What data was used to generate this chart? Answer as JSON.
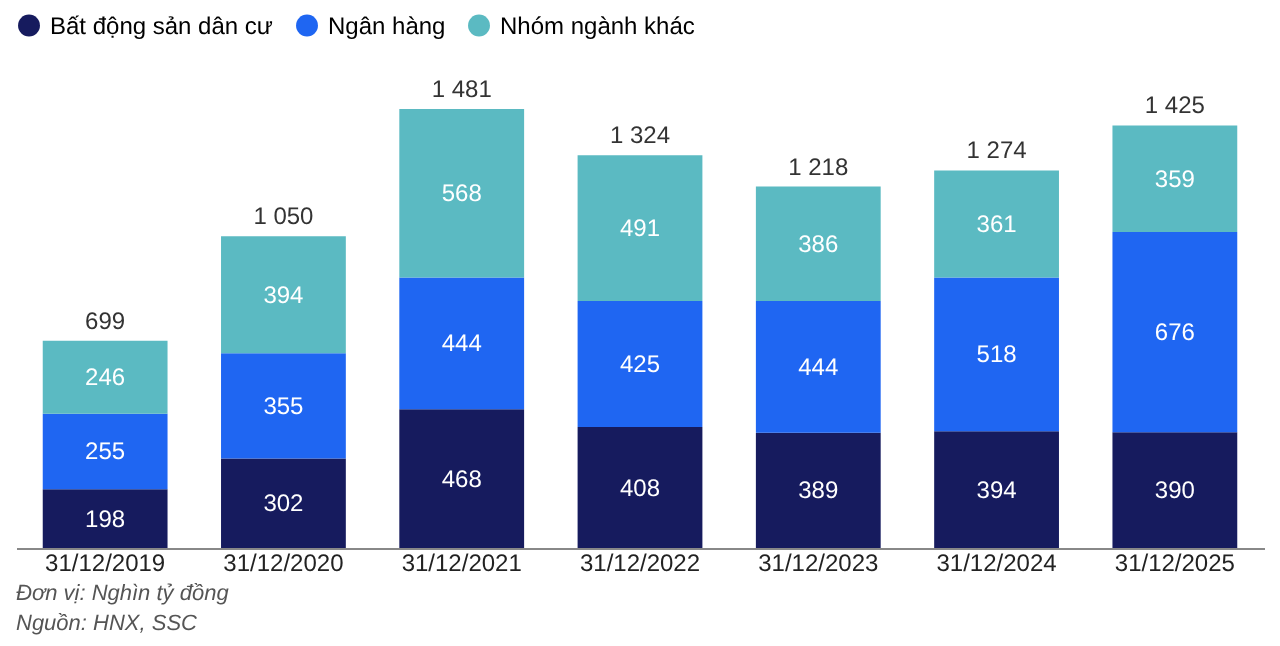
{
  "chart_data": {
    "type": "bar",
    "stacked": true,
    "data_labels": true,
    "legend": "top",
    "tick_labels": "x",
    "grid": false,
    "categories": [
      "31/12/2019",
      "31/12/2020",
      "31/12/2021",
      "31/12/2022",
      "31/12/2023",
      "31/12/2024",
      "31/12/2025"
    ],
    "series": [
      {
        "name": "Bất động sản dân cư",
        "color": "#161b5e",
        "values": [
          198,
          302,
          468,
          408,
          389,
          394,
          390
        ]
      },
      {
        "name": "Ngân hàng",
        "color": "#1f66f2",
        "values": [
          255,
          355,
          444,
          425,
          444,
          518,
          676
        ]
      },
      {
        "name": "Nhóm ngành khác",
        "color": "#5bbac2",
        "values": [
          246,
          394,
          568,
          491,
          386,
          361,
          359
        ]
      }
    ],
    "totals": [
      "699",
      "1 050",
      "1 481",
      "1 324",
      "1 218",
      "1 274",
      "1 425"
    ],
    "annotations": [
      "Đơn vị: Nghìn tỷ đồng",
      "Nguồn: HNX, SSC"
    ]
  }
}
